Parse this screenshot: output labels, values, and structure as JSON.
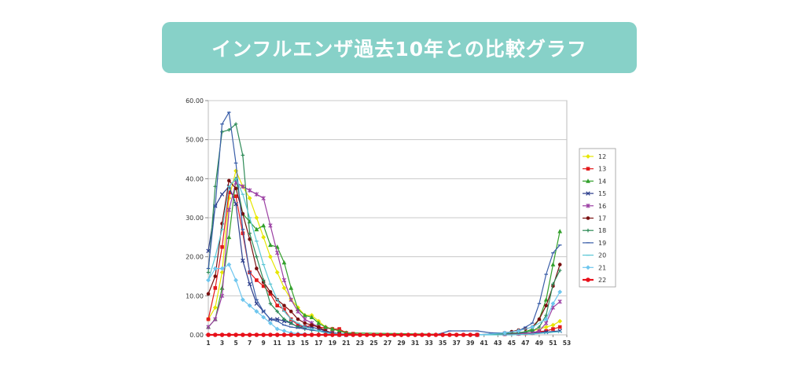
{
  "banner": {
    "title": "インフルエンザ過去10年との比較グラフ"
  },
  "chart_data": {
    "type": "line",
    "title": "",
    "xlabel": "",
    "ylabel": "",
    "xlim": [
      1,
      53
    ],
    "ylim": [
      0,
      60
    ],
    "yticks": [
      "0.00",
      "10.00",
      "20.00",
      "30.00",
      "40.00",
      "50.00",
      "60.00"
    ],
    "xticks": [
      "1",
      "3",
      "5",
      "7",
      "9",
      "11",
      "13",
      "15",
      "17",
      "19",
      "21",
      "23",
      "25",
      "27",
      "29",
      "31",
      "33",
      "35",
      "37",
      "39",
      "41",
      "43",
      "45",
      "47",
      "49",
      "51",
      "53"
    ],
    "grid": true,
    "legend_position": "right",
    "series": [
      {
        "name": "12",
        "color": "#e6e600",
        "marker": "diamond",
        "x": [
          1,
          2,
          3,
          4,
          5,
          6,
          7,
          8,
          9,
          10,
          11,
          12,
          13,
          14,
          15,
          16,
          17,
          18,
          19,
          20,
          21,
          22,
          40,
          44,
          46,
          48,
          50,
          51,
          52
        ],
        "y": [
          4,
          7,
          16,
          35,
          42,
          38,
          35,
          30,
          25,
          20,
          16,
          12,
          9,
          7,
          5,
          5,
          3.5,
          2,
          1.5,
          1,
          0.5,
          0,
          0,
          0.2,
          0.5,
          1,
          2,
          2.5,
          3.5
        ]
      },
      {
        "name": "13",
        "color": "#e31a1c",
        "marker": "square",
        "x": [
          1,
          2,
          3,
          4,
          5,
          6,
          7,
          8,
          9,
          10,
          11,
          12,
          13,
          14,
          15,
          16,
          17,
          18,
          19,
          20,
          21,
          22,
          23,
          40,
          44,
          46,
          47,
          48,
          49,
          50,
          51,
          52
        ],
        "y": [
          4,
          12,
          22.5,
          36.5,
          35.5,
          26,
          16,
          14,
          12.5,
          10.5,
          7.5,
          6.5,
          4,
          2.5,
          2,
          2.5,
          2,
          1.8,
          1.5,
          1.5,
          0.5,
          0.3,
          0,
          0,
          0.2,
          0.3,
          0.4,
          0.5,
          0.8,
          1,
          1.5,
          2
        ]
      },
      {
        "name": "14",
        "color": "#33a02c",
        "marker": "triangle",
        "x": [
          1,
          2,
          3,
          4,
          5,
          6,
          7,
          8,
          9,
          10,
          11,
          12,
          13,
          14,
          15,
          16,
          17,
          18,
          19,
          20,
          21,
          40,
          44,
          46,
          47,
          48,
          49,
          50,
          51,
          52
        ],
        "y": [
          2,
          4,
          12,
          25,
          40,
          31,
          29,
          27,
          28,
          23,
          22.5,
          18.5,
          12,
          6.5,
          5,
          4.5,
          3,
          2,
          1.5,
          1,
          0.5,
          0,
          0.3,
          0.5,
          0.8,
          1.5,
          4,
          9,
          18,
          26.5
        ]
      },
      {
        "name": "15",
        "color": "#2c3e8c",
        "marker": "x",
        "x": [
          1,
          2,
          3,
          4,
          5,
          6,
          7,
          8,
          9,
          10,
          11,
          12,
          13,
          14,
          15,
          16,
          17,
          18,
          19,
          20,
          21,
          40,
          44,
          48,
          50,
          52
        ],
        "y": [
          21.5,
          33,
          36,
          38,
          33.5,
          19,
          13,
          8,
          6,
          4,
          4,
          3.5,
          3,
          2,
          2,
          2,
          1.5,
          1,
          0.5,
          0.3,
          0,
          0,
          0.3,
          0.5,
          0.7,
          1
        ]
      },
      {
        "name": "16",
        "color": "#9b3fa3",
        "marker": "star",
        "x": [
          1,
          2,
          3,
          4,
          5,
          6,
          7,
          8,
          9,
          10,
          11,
          12,
          13,
          14,
          15,
          16,
          17,
          18,
          19,
          20,
          40,
          44,
          46,
          48,
          49,
          50,
          51,
          52
        ],
        "y": [
          2,
          4,
          10,
          32,
          39,
          38,
          37,
          36,
          35,
          28,
          21,
          14,
          9,
          6,
          4,
          3,
          2,
          1,
          0.5,
          0,
          0,
          0.2,
          0.3,
          0.5,
          1,
          3,
          7,
          8.5
        ]
      },
      {
        "name": "17",
        "color": "#7a1010",
        "marker": "circle",
        "x": [
          1,
          2,
          3,
          4,
          5,
          6,
          7,
          8,
          9,
          10,
          11,
          12,
          13,
          14,
          15,
          16,
          17,
          18,
          19,
          20,
          21,
          40,
          44,
          45,
          46,
          47,
          48,
          49,
          50,
          51,
          52
        ],
        "y": [
          10.5,
          15,
          28.5,
          39.5,
          37.5,
          31,
          24.5,
          17,
          13.5,
          11,
          9,
          7.5,
          6,
          4,
          3,
          2.5,
          2,
          1,
          0.5,
          0.3,
          0,
          0,
          0.5,
          0.8,
          1.2,
          1.5,
          2,
          4,
          7.5,
          12.5,
          18
        ]
      },
      {
        "name": "18",
        "color": "#2e8b57",
        "marker": "plus",
        "x": [
          1,
          2,
          3,
          4,
          5,
          6,
          7,
          8,
          9,
          10,
          11,
          12,
          13,
          14,
          15,
          16,
          17,
          18,
          19,
          20,
          21,
          40,
          44,
          46,
          48,
          49,
          50,
          51,
          52
        ],
        "y": [
          16,
          38,
          52,
          52.5,
          54,
          46,
          26,
          20,
          14,
          8,
          6,
          4,
          3,
          2,
          1.5,
          1.2,
          1,
          0.5,
          0.3,
          0.2,
          0,
          0,
          0.3,
          0.5,
          1,
          2,
          5,
          13,
          16.5
        ]
      },
      {
        "name": "19",
        "color": "#3a5ea8",
        "marker": "dash",
        "x": [
          1,
          2,
          3,
          4,
          5,
          6,
          7,
          8,
          9,
          10,
          11,
          12,
          13,
          14,
          15,
          16,
          17,
          18,
          19,
          20,
          21,
          22,
          23,
          25,
          30,
          34,
          36,
          38,
          40,
          42,
          44,
          46,
          47,
          48,
          49,
          50,
          51,
          52
        ],
        "y": [
          17,
          33,
          54,
          57,
          44,
          27,
          16,
          9,
          6,
          4,
          3.5,
          2.5,
          2,
          1.8,
          1.5,
          1.2,
          1,
          0.8,
          0.5,
          0.3,
          0.2,
          0.1,
          0,
          0,
          0,
          0,
          1,
          1,
          1,
          0.5,
          0.5,
          1,
          2,
          3,
          8,
          15.5,
          21,
          23
        ]
      },
      {
        "name": "20",
        "color": "#5bc7d6",
        "marker": "dash",
        "x": [
          1,
          2,
          3,
          4,
          5,
          6,
          7,
          8,
          9,
          10,
          11,
          12,
          13,
          14,
          15,
          16,
          17,
          18,
          19,
          20,
          21,
          22,
          23,
          30,
          35,
          40,
          45,
          48,
          50,
          52
        ],
        "y": [
          14,
          20,
          27,
          38,
          40,
          36,
          30,
          24,
          18,
          13,
          9,
          6,
          4,
          3,
          2,
          1.5,
          1,
          0.5,
          0.3,
          0.2,
          0.1,
          0,
          0,
          0,
          0,
          0,
          0,
          0.2,
          0.5,
          0.8
        ]
      },
      {
        "name": "21",
        "color": "#6ec6ee",
        "marker": "diamond",
        "x": [
          1,
          2,
          3,
          4,
          5,
          6,
          7,
          8,
          9,
          10,
          11,
          12,
          13,
          14,
          15,
          16,
          17,
          18,
          19,
          20,
          21,
          40,
          44,
          46,
          48,
          50,
          51,
          52
        ],
        "y": [
          14,
          17,
          17,
          18,
          14,
          9,
          7.5,
          6,
          4.5,
          3,
          1.5,
          1,
          0.5,
          0.3,
          0.2,
          0.1,
          0,
          0,
          0,
          0,
          0,
          0,
          0.5,
          1,
          2,
          4,
          8,
          11
        ]
      },
      {
        "name": "22",
        "color": "#e8101a",
        "marker": "circle-big",
        "x": [
          1,
          2,
          3,
          4,
          5,
          6,
          7,
          8,
          9,
          10,
          11,
          12,
          13,
          14,
          15,
          16,
          17,
          18,
          19,
          20,
          21,
          22,
          23,
          24,
          25,
          26,
          27,
          28,
          29,
          30,
          31,
          32,
          33,
          34,
          35,
          36,
          37,
          38,
          39,
          40
        ],
        "y": [
          0,
          0,
          0,
          0,
          0,
          0,
          0,
          0,
          0,
          0,
          0,
          0,
          0,
          0,
          0,
          0,
          0,
          0,
          0,
          0,
          0,
          0,
          0,
          0,
          0,
          0,
          0,
          0,
          0,
          0,
          0,
          0,
          0,
          0,
          0,
          0,
          0,
          0,
          0,
          0
        ]
      }
    ]
  }
}
